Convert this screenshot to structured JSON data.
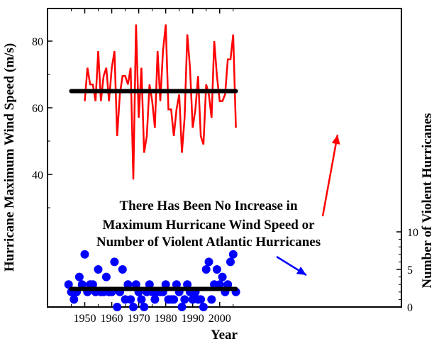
{
  "chart_data": {
    "type": "line",
    "xlabel": "Year",
    "ylabel_left": "Hurricane Maximum Wind Speed (m/s)",
    "ylabel_right": "Number of Violent Hurricanes",
    "x_ticks": [
      1950,
      1960,
      1970,
      1980,
      1990,
      2000
    ],
    "left_ticks": [
      40,
      60,
      80
    ],
    "right_ticks": [
      0,
      5,
      10
    ],
    "xlim": [
      1943,
      2007
    ],
    "annotation": [
      "There Has Been No Increase in",
      "Maximum Hurricane Wind Speed or",
      "Number of Violent Atlantic Hurricanes"
    ],
    "colors": {
      "wind": "#ff0000",
      "count": "#0000ff",
      "mean": "#000000",
      "arrow_wind": "#ff0000",
      "arrow_count": "#0000ff"
    },
    "series": [
      {
        "id": "wind",
        "axis": "left",
        "style": "line",
        "x": [
          1950,
          1951,
          1952,
          1953,
          1954,
          1955,
          1956,
          1957,
          1958,
          1959,
          1960,
          1961,
          1962,
          1963,
          1964,
          1965,
          1966,
          1967,
          1968,
          1969,
          1970,
          1971,
          1972,
          1973,
          1974,
          1975,
          1976,
          1977,
          1978,
          1979,
          1980,
          1981,
          1982,
          1983,
          1984,
          1985,
          1986,
          1987,
          1988,
          1989,
          1990,
          1991,
          1992,
          1993,
          1994,
          1995,
          1996,
          1997,
          1998,
          1999,
          2000,
          2001,
          2002,
          2003,
          2004,
          2005,
          2006
        ],
        "values": [
          62,
          72,
          67,
          67,
          62,
          77,
          62,
          69.5,
          72,
          62,
          72,
          77,
          51.5,
          64,
          69.5,
          69.5,
          67,
          72,
          38.5,
          85,
          57,
          72,
          46.5,
          51.5,
          67,
          62,
          54,
          77,
          62,
          77,
          85,
          59.5,
          59.5,
          51.5,
          59.5,
          64,
          46.5,
          57,
          82,
          72,
          54,
          59.5,
          69.5,
          51.5,
          49,
          67,
          64,
          57,
          80,
          69.5,
          62,
          62,
          64,
          74.5,
          74.5,
          82,
          54
        ]
      },
      {
        "id": "wind_mean",
        "axis": "left",
        "style": "hline",
        "value": 65,
        "x_range": [
          1945,
          2006
        ]
      },
      {
        "id": "count",
        "axis": "right",
        "style": "scatter",
        "x": [
          1944,
          1945,
          1946,
          1947,
          1948,
          1949,
          1950,
          1951,
          1952,
          1953,
          1954,
          1955,
          1956,
          1957,
          1958,
          1959,
          1960,
          1961,
          1962,
          1963,
          1964,
          1965,
          1966,
          1967,
          1968,
          1969,
          1970,
          1971,
          1972,
          1973,
          1974,
          1975,
          1976,
          1977,
          1978,
          1979,
          1980,
          1981,
          1982,
          1983,
          1984,
          1985,
          1986,
          1987,
          1988,
          1989,
          1990,
          1991,
          1992,
          1993,
          1994,
          1995,
          1996,
          1997,
          1998,
          1999,
          2000,
          2001,
          2002,
          2003,
          2004,
          2005,
          2006
        ],
        "values": [
          3,
          2,
          1,
          2,
          4,
          3,
          7,
          2,
          3,
          3,
          2,
          5,
          2,
          2,
          4,
          2,
          2,
          6,
          0,
          2,
          5,
          1,
          3,
          1,
          0,
          3,
          2,
          1,
          0,
          2,
          3,
          2,
          1,
          2,
          2,
          2,
          3,
          1,
          1,
          1,
          3,
          2,
          0,
          1,
          3,
          2,
          1,
          2,
          1,
          1,
          0,
          5,
          6,
          1,
          3,
          5,
          3,
          4,
          2,
          3,
          6,
          7,
          2
        ]
      },
      {
        "id": "count_mean",
        "axis": "right",
        "style": "hline",
        "value": 2.4,
        "x_range": [
          1945,
          2006
        ]
      }
    ]
  }
}
